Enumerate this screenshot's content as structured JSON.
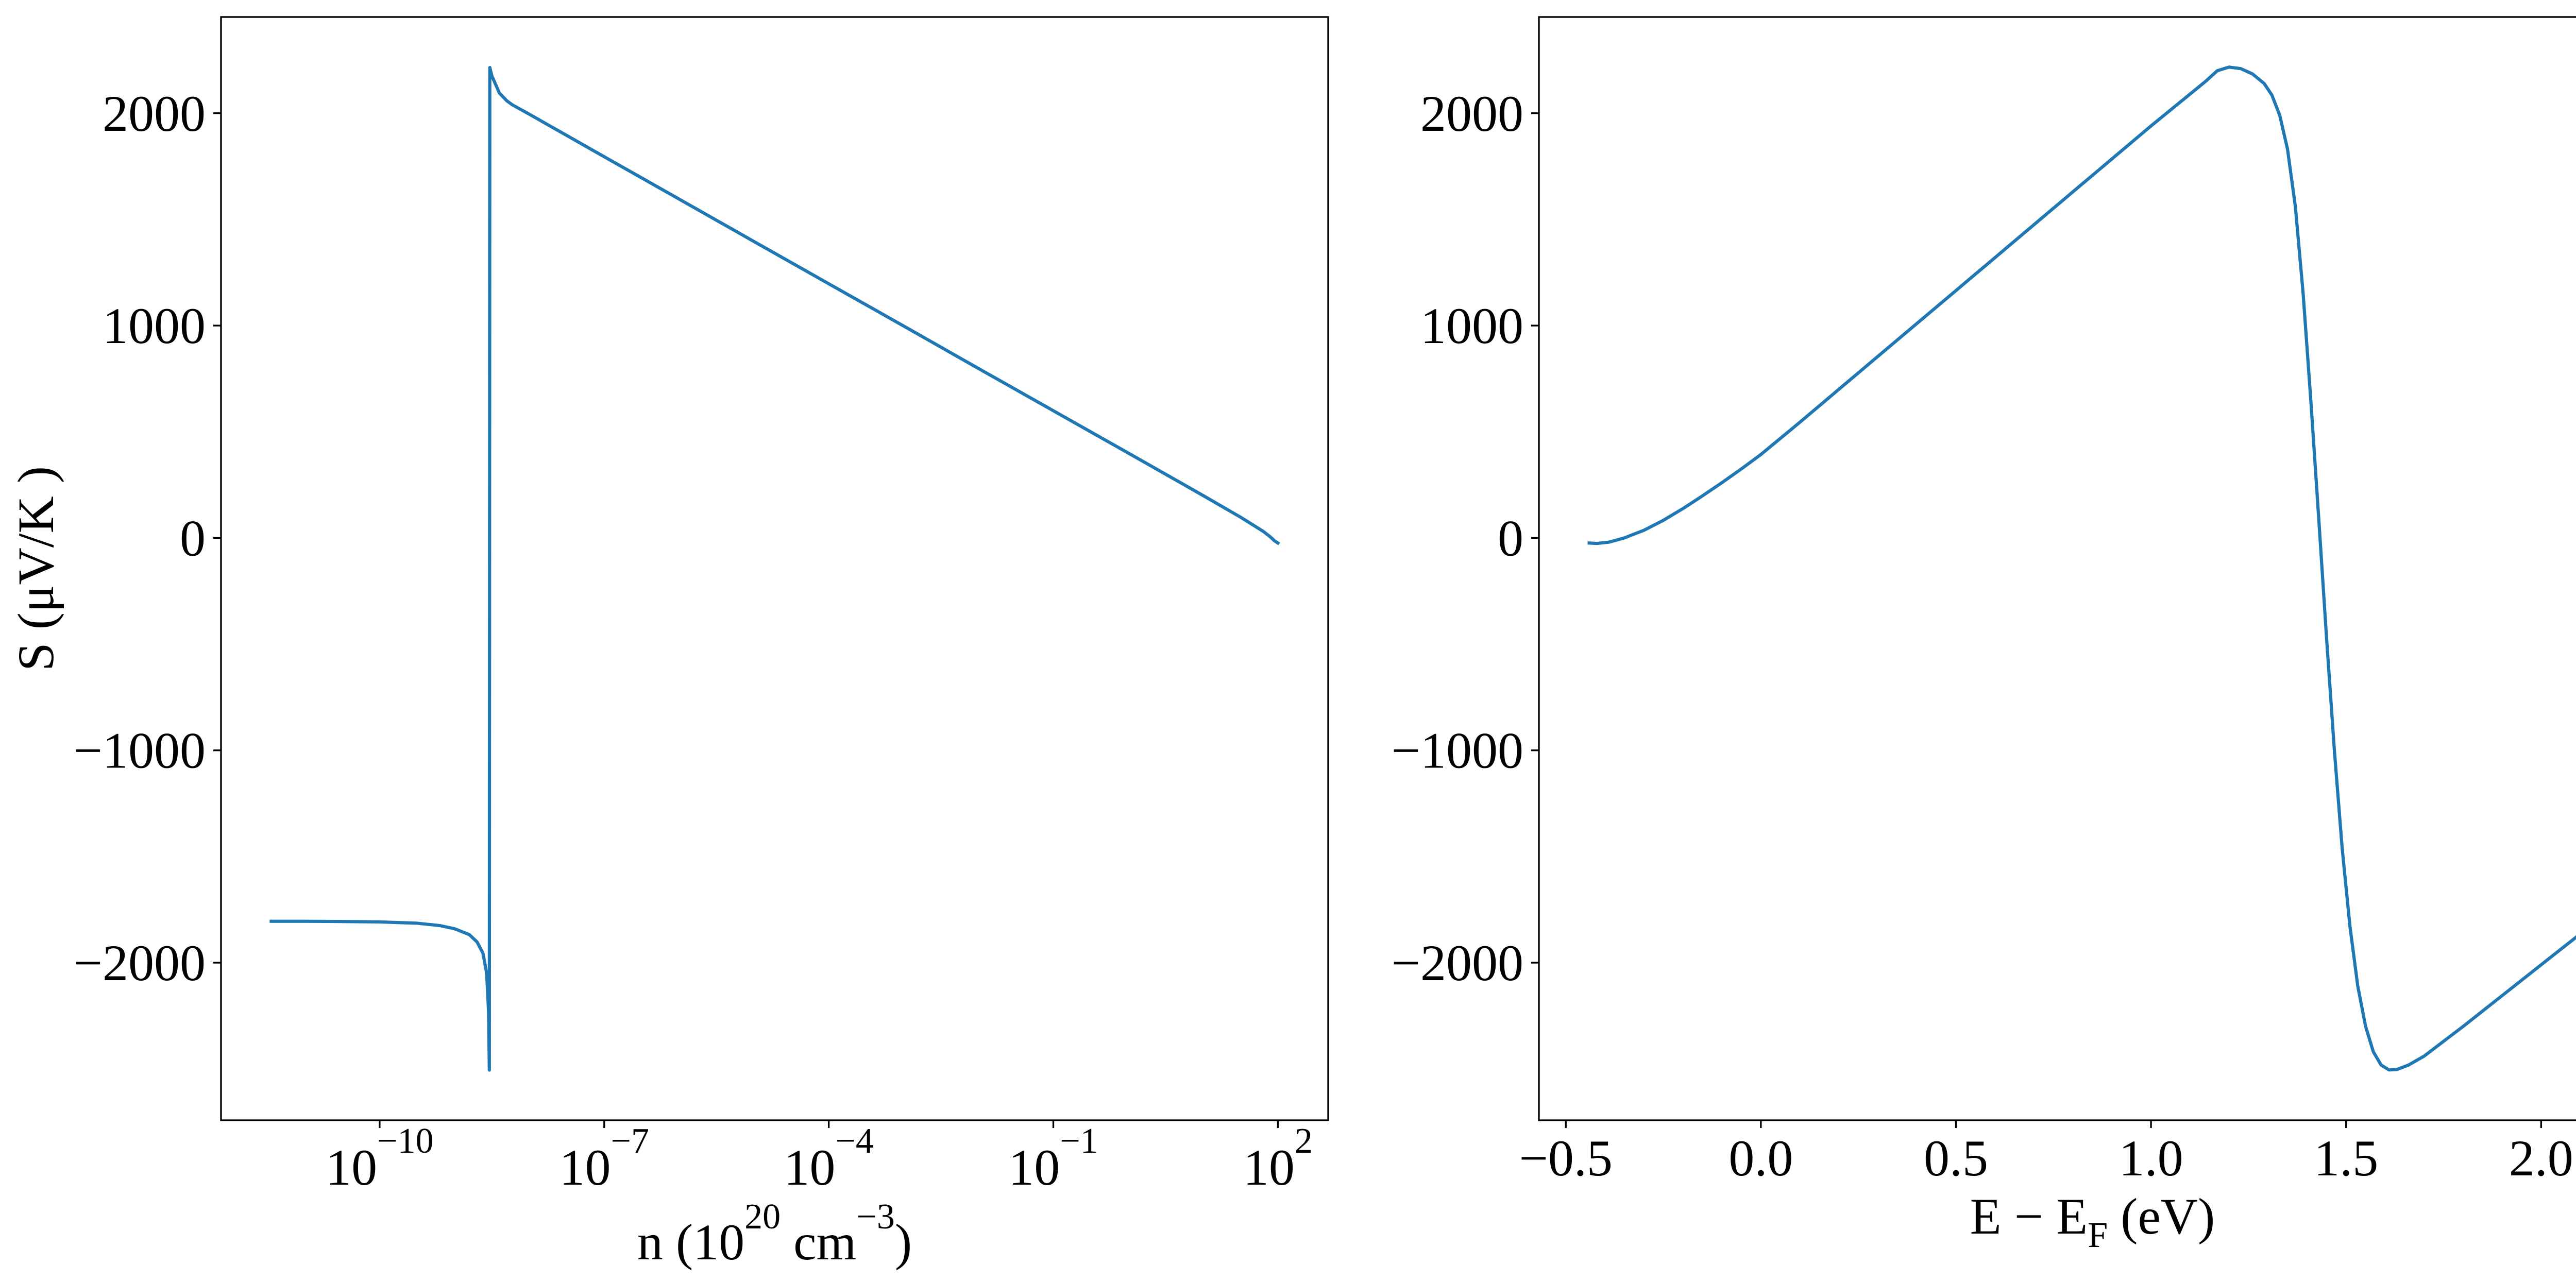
{
  "chart_data": [
    {
      "type": "line",
      "xscale": "log",
      "xlabel": {
        "text_1": "n (10",
        "sup_1": "20",
        "text_2": " cm",
        "sup_2": "−3",
        "text_3": ")"
      },
      "ylabel": "S (μV/K )",
      "xlim": [
        7.6e-13,
        470
      ],
      "ylim": [
        -2742,
        2453
      ],
      "grid": false,
      "color": "#1f77b4",
      "xticks": [
        {
          "value": 1e-10,
          "base": "10",
          "exp": "−10"
        },
        {
          "value": 1e-07,
          "base": "10",
          "exp": "−7"
        },
        {
          "value": 0.0001,
          "base": "10",
          "exp": "−4"
        },
        {
          "value": 0.1,
          "base": "10",
          "exp": "−1"
        },
        {
          "value": 100,
          "base": "10",
          "exp": "2"
        }
      ],
      "yticks": [
        {
          "value": 2000,
          "label": "2000"
        },
        {
          "value": 1000,
          "label": "1000"
        },
        {
          "value": 0,
          "label": "0"
        },
        {
          "value": -1000,
          "label": "−1000"
        },
        {
          "value": -2000,
          "label": "−2000"
        }
      ],
      "series": [
        {
          "x": [
            3.56e-12,
            1e-11,
            3.16e-11,
            1e-10,
            3.16e-10,
            6.31e-10,
            1e-09,
            1.58e-09,
            2e-09,
            2.4e-09,
            2.69e-09,
            2.85e-09,
            2.92e-09,
            2.96e-09,
            3.16e-09,
            3.55e-09,
            3.98e-09,
            5.01e-09,
            5.89e-09,
            1e-08,
            1e-07,
            1e-06,
            1e-05,
            0.0001,
            0.001,
            0.01,
            0.1,
            1,
            3.16,
            10,
            31.6,
            63.1,
            79.4,
            89.1,
            100
          ],
          "y": [
            -1805,
            -1805,
            -1806,
            -1808,
            -1814,
            -1825,
            -1840,
            -1868,
            -1902,
            -1955,
            -2050,
            -2230,
            -2506,
            2215,
            2175,
            2135,
            2095,
            2058,
            2040,
            1995,
            1795,
            1596,
            1396,
            1197,
            998,
            798,
            599,
            400,
            300,
            200,
            98,
            32,
            5,
            -12,
            -24
          ]
        }
      ]
    },
    {
      "type": "line",
      "xscale": "linear",
      "xlabel": {
        "text_1": "E − E",
        "sub_1": "F",
        "text_2": " (eV)"
      },
      "xlim": [
        -0.569,
        2.269
      ],
      "ylim": [
        -2742,
        2453
      ],
      "grid": false,
      "color": "#1f77b4",
      "xticks": [
        {
          "value": -0.5,
          "label": "−0.5"
        },
        {
          "value": 0.0,
          "label": "0.0"
        },
        {
          "value": 0.5,
          "label": "0.5"
        },
        {
          "value": 1.0,
          "label": "1.0"
        },
        {
          "value": 1.5,
          "label": "1.5"
        },
        {
          "value": 2.0,
          "label": "2.0"
        }
      ],
      "yticks": [
        {
          "value": 2000,
          "label": "2000"
        },
        {
          "value": 1000,
          "label": "1000"
        },
        {
          "value": 0,
          "label": "0"
        },
        {
          "value": -1000,
          "label": "−1000"
        },
        {
          "value": -2000,
          "label": "−2000"
        }
      ],
      "series": [
        {
          "x": [
            -0.44,
            -0.42,
            -0.39,
            -0.35,
            -0.3,
            -0.25,
            -0.2,
            -0.15,
            -0.1,
            -0.05,
            0.0,
            0.1,
            0.2,
            0.3,
            0.4,
            0.5,
            0.6,
            0.7,
            0.8,
            0.9,
            1.0,
            1.05,
            1.1,
            1.14,
            1.17,
            1.2,
            1.23,
            1.26,
            1.29,
            1.31,
            1.33,
            1.35,
            1.37,
            1.39,
            1.41,
            1.43,
            1.45,
            1.47,
            1.49,
            1.51,
            1.53,
            1.55,
            1.57,
            1.59,
            1.61,
            1.63,
            1.66,
            1.7,
            1.8,
            1.9,
            2.0,
            2.1,
            2.14
          ],
          "y": [
            -24,
            -26,
            -20,
            0,
            36,
            83,
            138,
            198,
            260,
            325,
            393,
            545,
            700,
            855,
            1010,
            1165,
            1320,
            1475,
            1630,
            1785,
            1940,
            2015,
            2090,
            2150,
            2200,
            2217,
            2210,
            2185,
            2140,
            2085,
            1990,
            1830,
            1560,
            1150,
            640,
            90,
            -470,
            -1000,
            -1460,
            -1830,
            -2110,
            -2300,
            -2420,
            -2482,
            -2505,
            -2503,
            -2482,
            -2440,
            -2300,
            -2155,
            -2010,
            -1865,
            -1805
          ]
        }
      ]
    }
  ]
}
